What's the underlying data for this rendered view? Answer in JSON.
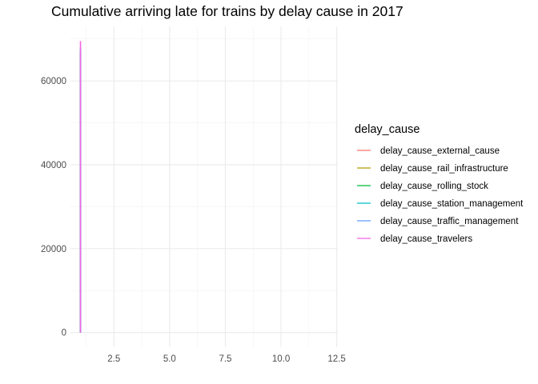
{
  "chart_data": {
    "type": "line",
    "title": "Cumulative arriving late for trains by delay cause in 2017",
    "xlabel": "",
    "ylabel": "",
    "xlim": [
      0.55,
      12.55
    ],
    "ylim": [
      -3500,
      73000
    ],
    "x_ticks": [
      2.5,
      5.0,
      7.5,
      10.0,
      12.5
    ],
    "x_tick_labels": [
      "2.5",
      "5.0",
      "7.5",
      "10.0",
      "12.5"
    ],
    "y_ticks": [
      0,
      20000,
      40000,
      60000
    ],
    "y_tick_labels": [
      "0",
      "20000",
      "40000",
      "60000"
    ],
    "grid": true,
    "legend": {
      "title": "delay_cause",
      "placement": "right"
    },
    "series": [
      {
        "name": "delay_cause_external_cause",
        "color": "#F8766D",
        "x": [
          1,
          1
        ],
        "y": [
          0,
          66000
        ]
      },
      {
        "name": "delay_cause_rail_infrastructure",
        "color": "#B79F00",
        "x": [
          1,
          1
        ],
        "y": [
          0,
          66500
        ]
      },
      {
        "name": "delay_cause_rolling_stock",
        "color": "#00BA38",
        "x": [
          1,
          1
        ],
        "y": [
          0,
          67000
        ]
      },
      {
        "name": "delay_cause_station_management",
        "color": "#00BFC4",
        "x": [
          1,
          1
        ],
        "y": [
          0,
          67500
        ]
      },
      {
        "name": "delay_cause_traffic_management",
        "color": "#619CFF",
        "x": [
          1,
          1
        ],
        "y": [
          0,
          68000
        ]
      },
      {
        "name": "delay_cause_travelers",
        "color": "#F564E3",
        "x": [
          1,
          1
        ],
        "y": [
          0,
          69500
        ]
      }
    ]
  }
}
